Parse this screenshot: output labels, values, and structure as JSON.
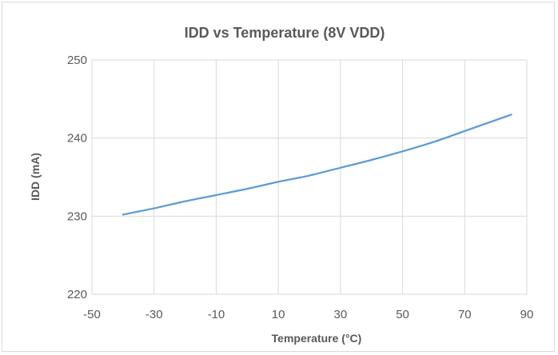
{
  "chart_data": {
    "type": "line",
    "title": "IDD vs Temperature (8V VDD)",
    "xlabel": "Temperature (°C)",
    "ylabel": "IDD (mA)",
    "xlim": [
      -50,
      90
    ],
    "ylim": [
      220,
      250
    ],
    "x_ticks": [
      "-50",
      "-30",
      "-10",
      "10",
      "30",
      "50",
      "70",
      "90"
    ],
    "y_ticks": [
      "220",
      "230",
      "240",
      "250"
    ],
    "grid": true,
    "legend": "none",
    "series": [
      {
        "color": "#5b9bd5",
        "x": [
          -40,
          -30,
          -20,
          -10,
          0,
          10,
          20,
          30,
          40,
          50,
          60,
          70,
          80,
          85
        ],
        "y": [
          230.2,
          231.0,
          231.9,
          232.7,
          233.5,
          234.4,
          235.2,
          236.2,
          237.2,
          238.3,
          239.5,
          240.9,
          242.3,
          243.0
        ]
      }
    ]
  }
}
